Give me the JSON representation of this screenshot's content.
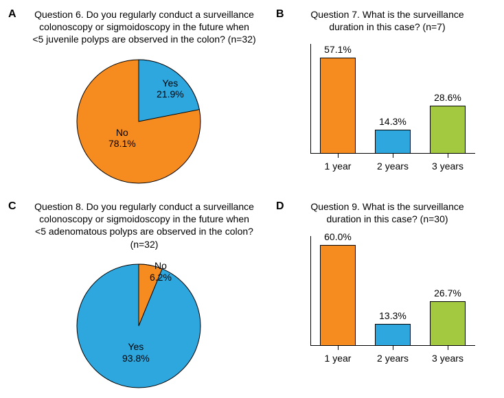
{
  "colors": {
    "orange": "#f68b1f",
    "blue": "#2ea7df",
    "green": "#a3c940",
    "black": "#000000",
    "white": "#ffffff"
  },
  "panelA": {
    "letter": "A",
    "title_l1": "Question 6. Do you regularly conduct a surveillance",
    "title_l2": "colonoscopy or sigmoidoscopy in the future when",
    "title_l3": "<5 juvenile polyps are observed in the colon? (n=32)",
    "pie": {
      "type": "pie",
      "yes_pct": 21.9,
      "no_pct": 78.1,
      "yes_label_l1": "Yes",
      "yes_label_l2": "21.9%",
      "no_label_l1": "No",
      "no_label_l2": "78.1%",
      "yes_color": "#2ea7df",
      "no_color": "#f68b1f",
      "start_angle_deg": 0
    }
  },
  "panelB": {
    "letter": "B",
    "title_l1": "Question 7. What is the surveillance",
    "title_l2": "duration in this case? (n=7)",
    "bar": {
      "type": "bar",
      "ymax": 65,
      "categories": [
        "1 year",
        "2 years",
        "3 years"
      ],
      "values": [
        57.1,
        14.3,
        28.6
      ],
      "value_labels": [
        "57.1%",
        "14.3%",
        "28.6%"
      ],
      "bar_colors": [
        "#f68b1f",
        "#2ea7df",
        "#a3c940"
      ]
    }
  },
  "panelC": {
    "letter": "C",
    "title_l1": "Question 8. Do you regularly conduct a surveillance",
    "title_l2": "colonoscopy or sigmoidoscopy in the future when",
    "title_l3": "<5 adenomatous polyps are observed in the colon? (n=32)",
    "pie": {
      "type": "pie",
      "yes_pct": 93.8,
      "no_pct": 6.2,
      "yes_label_l1": "Yes",
      "yes_label_l2": "93.8%",
      "no_label_l1": "No",
      "no_label_l2": "6.2%",
      "yes_color": "#2ea7df",
      "no_color": "#f68b1f",
      "start_angle_deg": 0
    }
  },
  "panelD": {
    "letter": "D",
    "title_l1": "Question 9. What is the surveillance",
    "title_l2": "duration in this case? (n=30)",
    "bar": {
      "type": "bar",
      "ymax": 65,
      "categories": [
        "1 year",
        "2 years",
        "3 years"
      ],
      "values": [
        60.0,
        13.3,
        26.7
      ],
      "value_labels": [
        "60.0%",
        "13.3%",
        "26.7%"
      ],
      "bar_colors": [
        "#f68b1f",
        "#2ea7df",
        "#a3c940"
      ]
    }
  }
}
